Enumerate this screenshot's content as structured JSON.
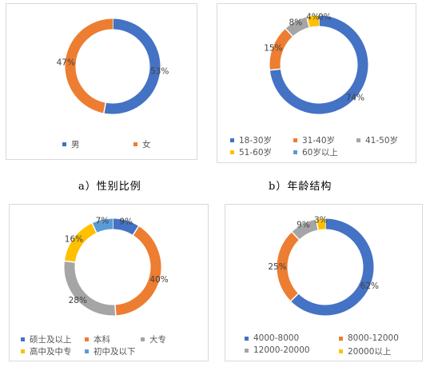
{
  "captions": {
    "a": "a）性别比例",
    "b": "b）年龄结构"
  },
  "chart_data": [
    {
      "type": "pie",
      "variant": "donut",
      "categories": [
        "男",
        "女"
      ],
      "values": [
        53,
        47
      ],
      "labels": [
        "53%",
        "47%"
      ],
      "colors": [
        "#4472C4",
        "#ED7D31"
      ],
      "legend": "bottom"
    },
    {
      "type": "pie",
      "variant": "donut",
      "categories": [
        "18-30岁",
        "31-40岁",
        "41-50岁",
        "51-60岁",
        "60岁以上"
      ],
      "values": [
        74,
        15,
        8,
        4,
        0
      ],
      "labels": [
        "74%",
        "15%",
        "8%",
        "4%",
        "0%"
      ],
      "colors": [
        "#4472C4",
        "#ED7D31",
        "#A5A5A5",
        "#FFC000",
        "#5B9BD5"
      ],
      "legend": "bottom"
    },
    {
      "type": "pie",
      "variant": "donut",
      "categories": [
        "硕士及以上",
        "本科",
        "大专",
        "高中及中专",
        "初中及以下"
      ],
      "values": [
        9,
        40,
        28,
        16,
        7
      ],
      "labels": [
        "9%",
        "40%",
        "28%",
        "16%",
        "7%"
      ],
      "colors": [
        "#4472C4",
        "#ED7D31",
        "#A5A5A5",
        "#FFC000",
        "#5B9BD5"
      ],
      "legend": "bottom"
    },
    {
      "type": "pie",
      "variant": "donut",
      "categories": [
        "4000-8000",
        "8000-12000",
        "12000-20000",
        "20000以上"
      ],
      "values": [
        62,
        25,
        9,
        3
      ],
      "labels": [
        "62%",
        "25%",
        "9%",
        "3%"
      ],
      "colors": [
        "#4472C4",
        "#ED7D31",
        "#A5A5A5",
        "#FFC000"
      ],
      "legend": "bottom"
    }
  ]
}
